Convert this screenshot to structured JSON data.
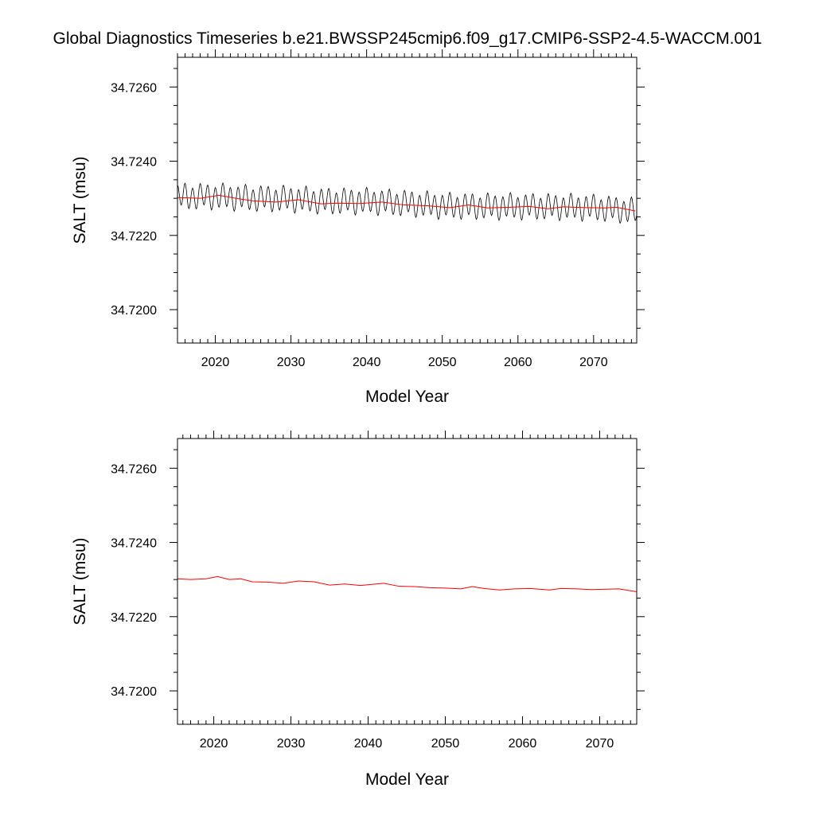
{
  "figure": {
    "title": "Global Diagnostics Timeseries b.e21.BWSSP245cmip6.f09_g17.CMIP6-SSP2-4.5-WACCM.001"
  },
  "chart_data": [
    {
      "type": "line",
      "xlabel": "Model Year",
      "ylabel": "SALT (msu)",
      "xlim": [
        2015,
        2075.7
      ],
      "ylim": [
        34.7191,
        34.7268
      ],
      "xticks": [
        2020,
        2030,
        2040,
        2050,
        2060,
        2070
      ],
      "xtick_labels": [
        "2020",
        "2030",
        "2040",
        "2050",
        "2060",
        "2070"
      ],
      "yticks": [
        34.72,
        34.722,
        34.724,
        34.726
      ],
      "ytick_labels": [
        "34.7200",
        "34.7220",
        "34.7240",
        "34.7260"
      ],
      "grid": false,
      "series": [
        {
          "color": "#000000",
          "style": "monthly",
          "annual_cycle_amplitude": 0.0003,
          "x": [
            2015,
            2020,
            2025,
            2030,
            2035,
            2040,
            2045,
            2050,
            2055,
            2060,
            2065,
            2070,
            2075.7
          ],
          "values": [
            34.72305,
            34.72305,
            34.723,
            34.72298,
            34.72292,
            34.72292,
            34.72287,
            34.7228,
            34.72278,
            34.72278,
            34.72277,
            34.72275,
            34.72265
          ]
        },
        {
          "color": "#ff0000",
          "style": "annual",
          "x": [
            2015,
            2018,
            2020.5,
            2023,
            2025,
            2028,
            2031,
            2034,
            2036,
            2039,
            2042,
            2045,
            2048,
            2051,
            2053.5,
            2056,
            2059,
            2061.5,
            2064,
            2066,
            2069,
            2071.5,
            2073,
            2075.5
          ],
          "values": [
            34.72302,
            34.723,
            34.72308,
            34.72299,
            34.72293,
            34.7229,
            34.72296,
            34.72285,
            34.72287,
            34.72286,
            34.7229,
            34.72282,
            34.7228,
            34.72275,
            34.72282,
            34.72274,
            34.72276,
            34.72278,
            34.72272,
            34.72277,
            34.72275,
            34.72274,
            34.72276,
            34.72266
          ]
        }
      ]
    },
    {
      "type": "line",
      "xlabel": "Model Year",
      "ylabel": "SALT (msu)",
      "xlim": [
        2015.3,
        2074.8
      ],
      "ylim": [
        34.7191,
        34.7268
      ],
      "xticks": [
        2020,
        2030,
        2040,
        2050,
        2060,
        2070
      ],
      "xtick_labels": [
        "2020",
        "2030",
        "2040",
        "2050",
        "2060",
        "2070"
      ],
      "yticks": [
        34.72,
        34.722,
        34.724,
        34.726
      ],
      "ytick_labels": [
        "34.7200",
        "34.7220",
        "34.7240",
        "34.7260"
      ],
      "grid": false,
      "series": [
        {
          "color": "#ff0000",
          "style": "annual",
          "x": [
            2015.3,
            2017,
            2019,
            2020.5,
            2022,
            2023.5,
            2025,
            2027,
            2029,
            2031,
            2033,
            2035,
            2037,
            2039,
            2042,
            2044,
            2046,
            2048,
            2050,
            2052,
            2053.5,
            2055,
            2057,
            2059,
            2061,
            2063.5,
            2065,
            2067,
            2069,
            2071,
            2072.5,
            2074.8
          ],
          "values": [
            34.72302,
            34.723,
            34.72302,
            34.72308,
            34.723,
            34.72302,
            34.72294,
            34.72293,
            34.7229,
            34.72296,
            34.72294,
            34.72285,
            34.72288,
            34.72284,
            34.7229,
            34.72282,
            34.72281,
            34.72278,
            34.72277,
            34.72275,
            34.72281,
            34.72276,
            34.72272,
            34.72275,
            34.72276,
            34.72272,
            34.72276,
            34.72275,
            34.72273,
            34.72274,
            34.72275,
            34.72267
          ]
        }
      ]
    }
  ]
}
